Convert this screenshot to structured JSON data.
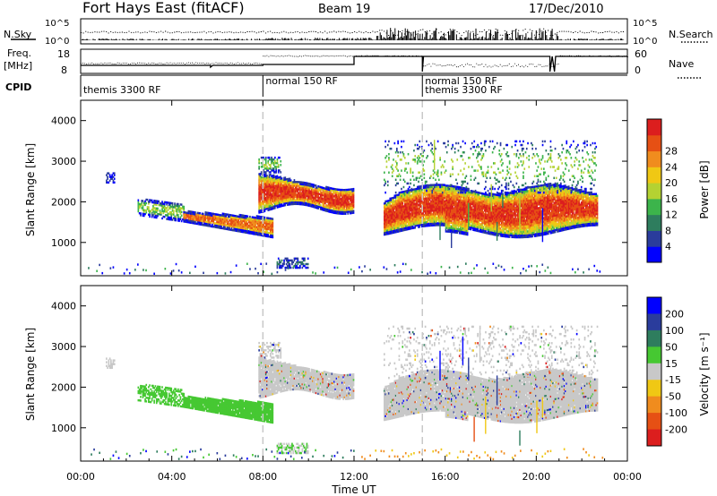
{
  "header": {
    "title": "Fort Hays East (fitACF)",
    "beam": "Beam 19",
    "date": "17/Dec/2010"
  },
  "top_panels": {
    "nsky_label": "N.Sky",
    "nsearch_label": "N.Search",
    "noise_ticks": [
      "10^5",
      "10^0"
    ],
    "freq_label_line1": "Freq.",
    "freq_label_line2": "[MHz]",
    "freq_ticks": [
      "18",
      "8"
    ],
    "nave_label": "Nave",
    "nave_ticks": [
      "60",
      "0"
    ],
    "cpid_label": "CPID",
    "cpid_segments": [
      {
        "start": 0,
        "label": "themis 3300 RF"
      },
      {
        "start": 8,
        "label": "normal 150 RF"
      },
      {
        "start": 15,
        "label": "normal 150 RF"
      },
      {
        "start": 15,
        "label": "themis 3300 RF"
      }
    ]
  },
  "colors": {
    "power_scale": [
      "#0000ff",
      "#2a3c9c",
      "#2e7d5e",
      "#3cb44b",
      "#b4d232",
      "#f0c814",
      "#f08c1e",
      "#e65014",
      "#dc1e1e"
    ],
    "velocity_scale": [
      "#0000ff",
      "#2a3c9c",
      "#2e7d5e",
      "#46c832",
      "#c8c8c8",
      "#f0c814",
      "#f08c1e",
      "#e65014",
      "#dc1e1e"
    ],
    "grey_scatter": "#c8c8c8"
  },
  "chart_data": [
    {
      "type": "heatmap",
      "panel": "power",
      "ylabel": "Slant Range [km]",
      "ylim": [
        180,
        4500
      ],
      "y_ticks": [
        "1000",
        "2000",
        "3000",
        "4000"
      ],
      "colorbar_label": "Power [dB]",
      "colorbar_ticks": [
        "4",
        "8",
        "12",
        "16",
        "20",
        "24",
        "28"
      ],
      "colorbar_range": [
        0,
        32
      ]
    },
    {
      "type": "heatmap",
      "panel": "velocity",
      "ylabel": "Slant Range [km]",
      "ylim": [
        180,
        4500
      ],
      "y_ticks": [
        "1000",
        "2000",
        "3000",
        "4000"
      ],
      "colorbar_label": "Velocity [m s⁻¹]",
      "colorbar_ticks": [
        "200",
        "100",
        "50",
        "15",
        "-15",
        "-50",
        "-100",
        "-200"
      ],
      "xlabel": "Time UT",
      "x_ticks": [
        "00:00",
        "04:00",
        "08:00",
        "12:00",
        "16:00",
        "20:00",
        "00:00"
      ],
      "xlim_hours": [
        0,
        24
      ]
    }
  ]
}
